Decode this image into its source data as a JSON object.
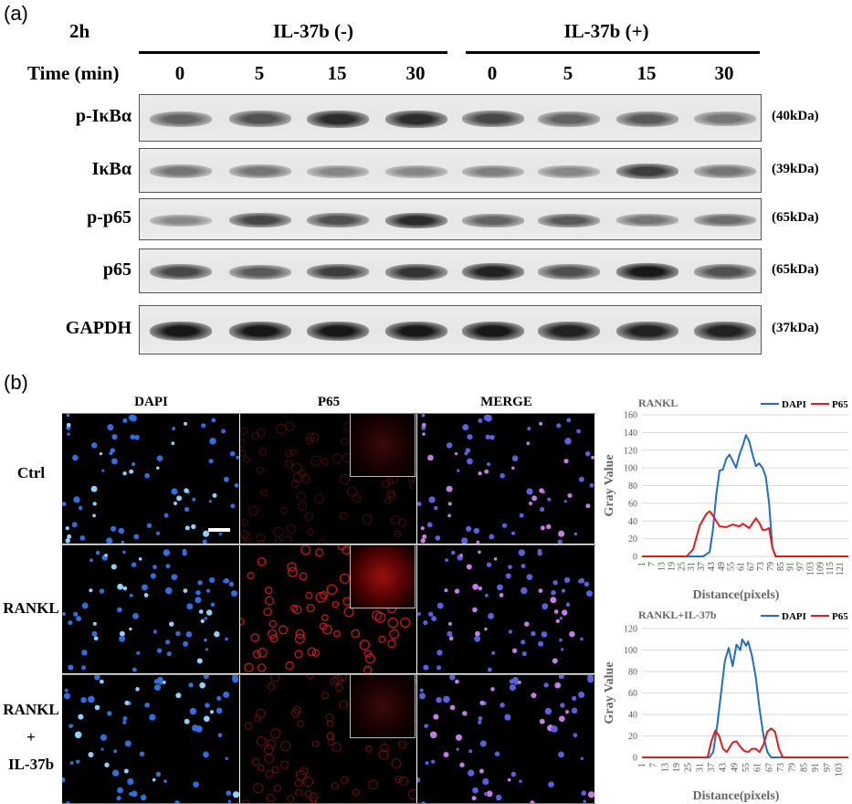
{
  "panel_a": {
    "letter": "(a)",
    "condition": "2h",
    "groups": [
      "IL-37b (-)",
      "IL-37b (+)"
    ],
    "time_label": "Time (min)",
    "times": [
      "0",
      "5",
      "15",
      "30",
      "0",
      "5",
      "15",
      "30"
    ],
    "rows": [
      {
        "label": "p-IκBα",
        "kda": "(40kDa)",
        "intensity": [
          0.55,
          0.65,
          0.85,
          0.85,
          0.7,
          0.55,
          0.6,
          0.45
        ]
      },
      {
        "label": "IκBα",
        "kda": "(39kDa)",
        "intensity": [
          0.45,
          0.45,
          0.35,
          0.35,
          0.4,
          0.35,
          0.75,
          0.45
        ]
      },
      {
        "label": "p-p65",
        "kda": "(65kDa)",
        "intensity": [
          0.35,
          0.7,
          0.65,
          0.85,
          0.55,
          0.6,
          0.45,
          0.5
        ]
      },
      {
        "label": "p65",
        "kda": "(65kDa)",
        "intensity": [
          0.7,
          0.6,
          0.75,
          0.8,
          0.9,
          0.65,
          0.95,
          0.65
        ]
      },
      {
        "label": "GAPDH",
        "kda": "(37kDa)",
        "intensity": [
          0.95,
          0.95,
          0.95,
          0.95,
          0.95,
          0.9,
          0.9,
          0.9
        ]
      }
    ]
  },
  "panel_b": {
    "letter": "(b)",
    "columns": [
      "DAPI",
      "P65",
      "MERGE"
    ],
    "rows": [
      {
        "label": "Ctrl"
      },
      {
        "label": "RANKL"
      },
      {
        "label_lines": [
          "RANKL",
          "+",
          "IL-37b"
        ]
      }
    ]
  },
  "chart_data": [
    {
      "type": "line",
      "title": "RANKL",
      "xlabel": "Distance(pixels)",
      "ylabel": "Gray Value",
      "ylim": [
        0,
        160
      ],
      "yticks": [
        0,
        20,
        40,
        60,
        80,
        100,
        120,
        140,
        160
      ],
      "xticks": [
        "1",
        "7",
        "13",
        "19",
        "25",
        "31",
        "37",
        "43",
        "49",
        "55",
        "61",
        "67",
        "73",
        "79",
        "85",
        "91",
        "97",
        "103",
        "109",
        "115",
        "121"
      ],
      "xlim": [
        1,
        126
      ],
      "legend": "top-right",
      "series": [
        {
          "name": "DAPI",
          "color": "#1f6fc4",
          "x": [
            1,
            38,
            42,
            44,
            46,
            48,
            50,
            52,
            54,
            56,
            58,
            60,
            62,
            64,
            66,
            68,
            70,
            72,
            74,
            76,
            78,
            80,
            82,
            126
          ],
          "y": [
            0,
            0,
            5,
            30,
            70,
            97,
            98,
            110,
            115,
            108,
            100,
            115,
            125,
            137,
            130,
            115,
            102,
            105,
            100,
            90,
            60,
            10,
            0,
            0
          ]
        },
        {
          "name": "P65",
          "color": "#e01b1b",
          "x": [
            1,
            28,
            32,
            36,
            40,
            42,
            44,
            48,
            52,
            56,
            60,
            62,
            66,
            70,
            72,
            74,
            76,
            78,
            80,
            82,
            126
          ],
          "y": [
            0,
            0,
            8,
            35,
            48,
            51,
            46,
            34,
            33,
            36,
            34,
            37,
            32,
            43,
            38,
            30,
            30,
            32,
            10,
            0,
            0
          ]
        }
      ]
    },
    {
      "type": "line",
      "title": "RANKL+IL-37b",
      "xlabel": "Distance(pixels)",
      "ylabel": "Gray Value",
      "ylim": [
        0,
        120
      ],
      "yticks": [
        0,
        20,
        40,
        60,
        80,
        100,
        120
      ],
      "xticks": [
        "1",
        "7",
        "13",
        "19",
        "25",
        "31",
        "37",
        "43",
        "49",
        "55",
        "61",
        "67",
        "73",
        "79",
        "85",
        "91",
        "97",
        "103"
      ],
      "xlim": [
        1,
        108
      ],
      "legend": "top-right",
      "series": [
        {
          "name": "DAPI",
          "color": "#1f6fc4",
          "x": [
            1,
            36,
            38,
            40,
            42,
            44,
            46,
            48,
            50,
            52,
            53,
            55,
            56,
            58,
            60,
            62,
            64,
            66,
            68,
            108
          ],
          "y": [
            0,
            0,
            5,
            30,
            60,
            90,
            102,
            85,
            105,
            100,
            110,
            104,
            108,
            95,
            75,
            45,
            20,
            5,
            0,
            0
          ]
        },
        {
          "name": "P65",
          "color": "#e01b1b",
          "x": [
            1,
            35,
            37,
            39,
            41,
            43,
            45,
            48,
            50,
            52,
            54,
            56,
            58,
            60,
            62,
            64,
            66,
            68,
            70,
            72,
            74,
            108
          ],
          "y": [
            0,
            0,
            15,
            25,
            20,
            8,
            5,
            14,
            15,
            10,
            6,
            5,
            8,
            8,
            5,
            12,
            24,
            27,
            24,
            8,
            0,
            0
          ]
        }
      ]
    }
  ]
}
